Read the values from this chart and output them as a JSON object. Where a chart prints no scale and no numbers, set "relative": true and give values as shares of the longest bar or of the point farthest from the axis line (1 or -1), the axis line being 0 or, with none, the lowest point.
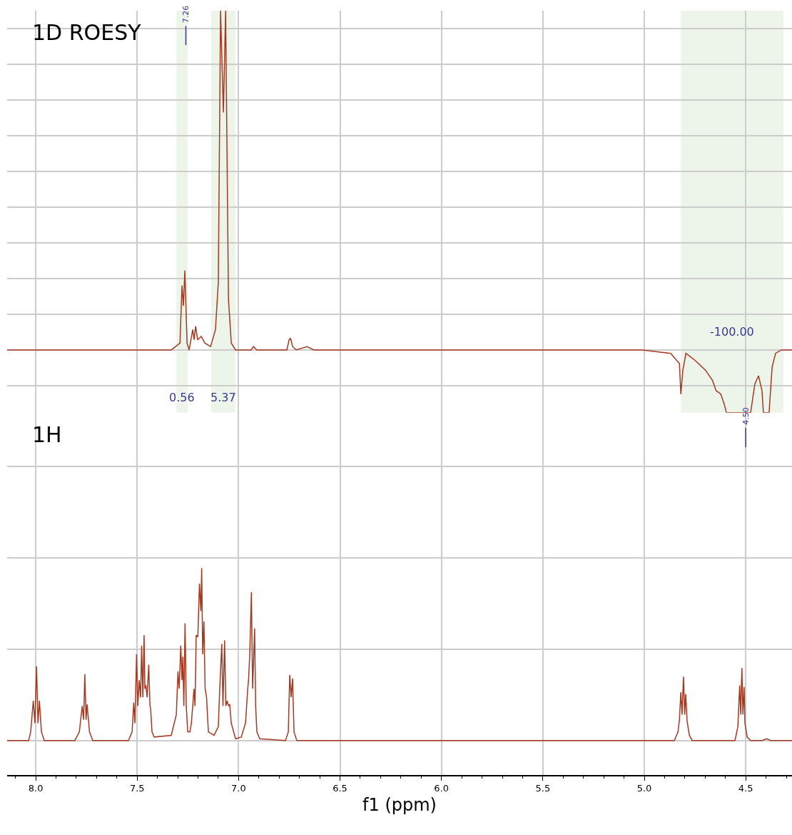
{
  "chart_data": [
    {
      "type": "line",
      "title": "1D ROESY",
      "relative": true,
      "grid": true,
      "tick_labels": false,
      "color": "#a33a22",
      "xlim": [
        8.141,
        4.272
      ],
      "xticks": [
        8,
        7.5,
        7,
        6.5,
        6,
        5.5,
        5,
        4.5
      ],
      "x": [
        8.141,
        7.332,
        7.289,
        7.279,
        7.272,
        7.265,
        7.254,
        7.244,
        7.226,
        7.219,
        7.212,
        7.202,
        7.184,
        7.166,
        7.138,
        7.114,
        7.1,
        7.089,
        7.075,
        7.064,
        7.05,
        7.036,
        7.015,
        6.938,
        6.927,
        6.91,
        6.762,
        6.751,
        6.744,
        6.734,
        6.716,
        6.663,
        6.628,
        5.01,
        4.87,
        4.827,
        4.82,
        4.81,
        4.795,
        4.751,
        4.698,
        4.664,
        4.646,
        4.623,
        4.606,
        4.595,
        4.476,
        4.455,
        4.437,
        4.42,
        4.413,
        4.385,
        4.37,
        4.353,
        4.325,
        4.272
      ],
      "values": [
        0,
        0,
        0.02,
        0.19,
        0.13,
        0.234,
        0.02,
        0,
        0.06,
        0.03,
        0.07,
        0.03,
        0.04,
        0.02,
        0.01,
        0.06,
        0.2,
        1.0,
        0.7,
        1.0,
        0.15,
        0.02,
        0,
        0,
        0.01,
        0,
        0,
        0.03,
        0.035,
        0.01,
        0,
        0.01,
        0,
        0,
        -0.01,
        -0.04,
        -0.13,
        -0.06,
        -0.01,
        -0.03,
        -0.06,
        -0.09,
        -0.12,
        -0.13,
        -0.16,
        -0.185,
        -0.185,
        -0.1,
        -0.076,
        -0.12,
        -0.185,
        -0.185,
        -0.05,
        -0.01,
        0,
        0
      ],
      "ref_lines": [
        {
          "axis": "x",
          "value": 7.26,
          "label": "7.26"
        },
        {
          "axis": "x",
          "value": 4.5,
          "label": "4.50"
        }
      ],
      "bands": [
        {
          "axis": "x",
          "from": 7.307,
          "to": 7.251,
          "label": "0.56",
          "color": "#4a9a3a"
        },
        {
          "axis": "x",
          "from": 7.135,
          "to": 7.015,
          "label": "5.37",
          "color": "#4a9a3a"
        },
        {
          "axis": "x",
          "from": 4.82,
          "to": 4.314,
          "label": "-100.00",
          "color": "#4a9a3a"
        }
      ]
    },
    {
      "type": "line",
      "title": "1H",
      "xlabel": "f1 (ppm)",
      "relative": true,
      "grid": true,
      "tick_labels": "x",
      "color": "#a33a22",
      "xlim": [
        8.141,
        4.272
      ],
      "xticks": [
        {
          "value": 8,
          "label": "8.0"
        },
        {
          "value": 7.5,
          "label": "7.5"
        },
        {
          "value": 7,
          "label": "7.0"
        },
        {
          "value": 6.5,
          "label": "6.5"
        },
        {
          "value": 6,
          "label": "6.0"
        },
        {
          "value": 5.5,
          "label": "5.5"
        },
        {
          "value": 5,
          "label": "5.0"
        },
        {
          "value": 4.5,
          "label": "4.5"
        }
      ],
      "x": [
        8.141,
        8.035,
        8.025,
        8.012,
        8.004,
        7.996,
        7.989,
        7.982,
        7.972,
        7.958,
        7.807,
        7.785,
        7.771,
        7.764,
        7.758,
        7.752,
        7.747,
        7.735,
        7.719,
        7.543,
        7.525,
        7.517,
        7.511,
        7.503,
        7.497,
        7.49,
        7.483,
        7.478,
        7.472,
        7.466,
        7.462,
        7.457,
        7.451,
        7.443,
        7.437,
        7.434,
        7.427,
        7.416,
        7.332,
        7.307,
        7.299,
        7.293,
        7.285,
        7.279,
        7.275,
        7.27,
        7.264,
        7.258,
        7.251,
        7.24,
        7.233,
        7.226,
        7.22,
        7.215,
        7.209,
        7.201,
        7.193,
        7.186,
        7.182,
        7.177,
        7.171,
        7.165,
        7.158,
        7.149,
        7.121,
        7.1,
        7.093,
        7.083,
        7.077,
        7.069,
        7.063,
        7.056,
        7.05,
        7.044,
        7.036,
        7.015,
        6.987,
        6.966,
        6.955,
        6.951,
        6.945,
        6.937,
        6.931,
        6.921,
        6.916,
        6.91,
        6.896,
        6.769,
        6.755,
        6.748,
        6.741,
        6.734,
        6.727,
        6.713,
        4.852,
        4.834,
        4.827,
        4.82,
        4.814,
        4.807,
        4.801,
        4.796,
        4.789,
        4.778,
        4.764,
        4.553,
        4.539,
        4.53,
        4.525,
        4.519,
        4.514,
        4.508,
        4.504,
        4.493,
        4.476,
        4.419,
        4.398,
        4.377,
        4.272
      ],
      "values": [
        0,
        0,
        0.05,
        0.23,
        0.1,
        0.43,
        0.1,
        0.23,
        0.05,
        0,
        0,
        0.05,
        0.2,
        0.12,
        0.385,
        0.12,
        0.21,
        0.05,
        0,
        0,
        0.05,
        0.22,
        0.1,
        0.5,
        0.2,
        0.35,
        0.25,
        0.55,
        0.25,
        0.61,
        0.3,
        0.32,
        0.25,
        0.44,
        0.2,
        0.19,
        0.05,
        0.02,
        0.03,
        0.15,
        0.4,
        0.3,
        0.55,
        0.35,
        0.485,
        0.2,
        0.68,
        0.2,
        0.05,
        0.05,
        0.1,
        0.2,
        0.3,
        0.2,
        0.61,
        0.6,
        0.91,
        0.75,
        1.0,
        0.5,
        0.69,
        0.3,
        0.25,
        0.05,
        0.03,
        0.08,
        0.3,
        0.56,
        0.2,
        0.58,
        0.2,
        0.23,
        0.2,
        0.21,
        0.1,
        0.01,
        0.02,
        0.1,
        0.3,
        0.35,
        0.5,
        0.86,
        0.3,
        0.65,
        0.2,
        0.05,
        0.01,
        0,
        0.05,
        0.38,
        0.25,
        0.36,
        0.05,
        0,
        0,
        0.05,
        0.12,
        0.28,
        0.15,
        0.37,
        0.15,
        0.27,
        0.11,
        0.03,
        0,
        0,
        0.08,
        0.32,
        0.15,
        0.42,
        0.15,
        0.31,
        0.1,
        0.02,
        0,
        0,
        0.01,
        0,
        0
      ]
    }
  ]
}
